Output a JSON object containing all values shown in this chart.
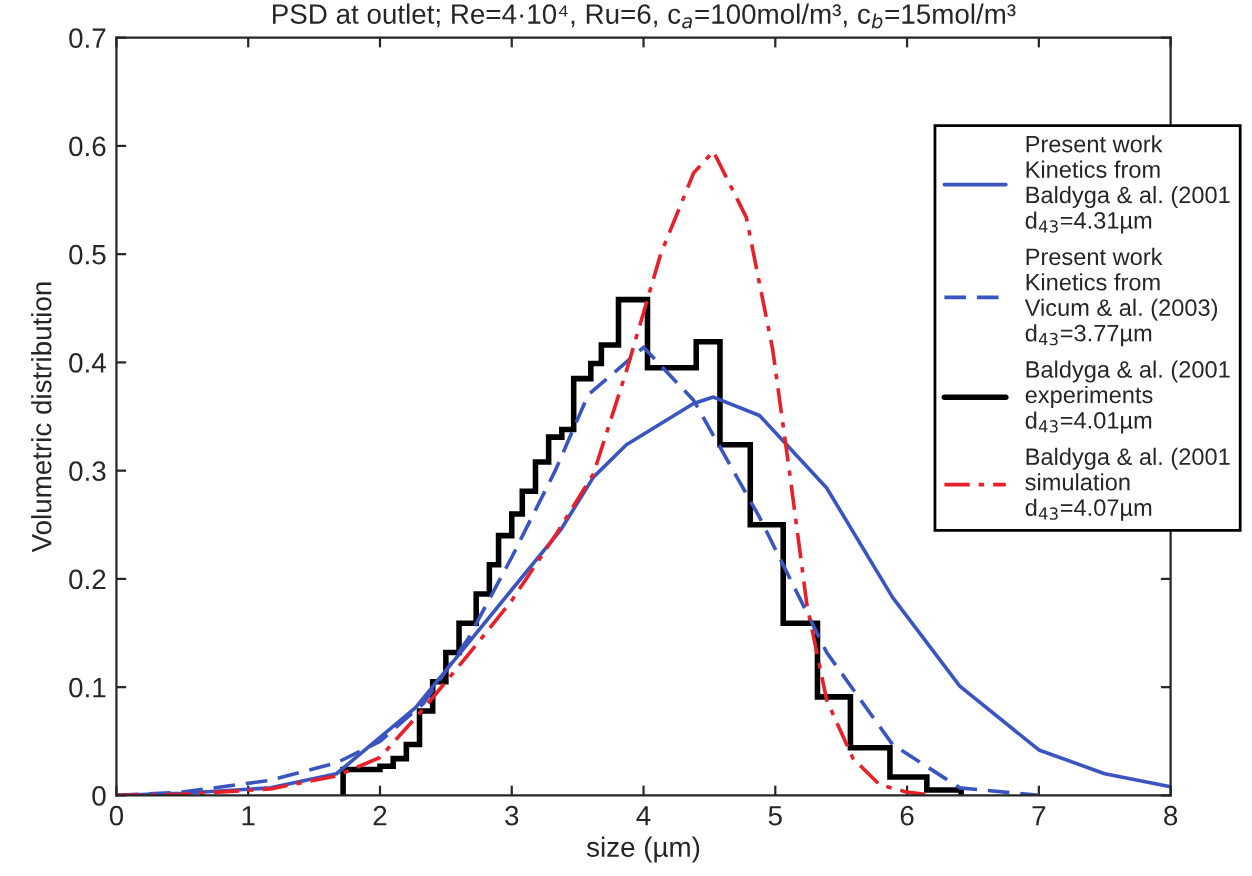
{
  "chart_data": {
    "type": "line",
    "title": "PSD at outlet; Re=4·10⁴, Ru=6, c$_{a}$=100mol/m³, c$_{b}$=15mol/m³",
    "xlabel": "size (µm)",
    "ylabel": "Volumetric distribution",
    "xlim": [
      0,
      8
    ],
    "ylim": [
      0,
      0.7
    ],
    "xticks": [
      0,
      1,
      2,
      3,
      4,
      5,
      6,
      7,
      8
    ],
    "yticks": [
      0,
      0.1,
      0.2,
      0.3,
      0.4,
      0.5,
      0.6,
      0.7
    ],
    "grid": false,
    "legend": "top right",
    "series": [
      {
        "name": "Present work\nKinetics from\nBaldyga & al. (2001\nd$_{43}$=4.31µm",
        "type": "line",
        "line_style": "solid",
        "color": "#3a55c0",
        "x": [
          0,
          0.5,
          1.17,
          1.67,
          2.27,
          3.0,
          3.37,
          3.62,
          3.87,
          4.38,
          4.53,
          4.88,
          5.39,
          5.89,
          6.4,
          7.0,
          7.5,
          8.0
        ],
        "values": [
          0,
          0.002,
          0.007,
          0.02,
          0.081,
          0.19,
          0.245,
          0.294,
          0.324,
          0.362,
          0.368,
          0.351,
          0.284,
          0.183,
          0.101,
          0.042,
          0.02,
          0.008
        ]
      },
      {
        "name": "Present work\nKinetics from\nVicum & al. (2003)\nd$_{43}$=3.77µm",
        "type": "line",
        "line_style": "dashed",
        "color": "#3a55c0",
        "x": [
          0,
          0.5,
          1.17,
          1.67,
          2.0,
          2.33,
          2.67,
          3.0,
          3.33,
          3.58,
          4.0,
          4.38,
          4.88,
          5.39,
          5.89,
          6.4,
          7.0
        ],
        "values": [
          0,
          0.003,
          0.014,
          0.03,
          0.05,
          0.085,
          0.145,
          0.22,
          0.3,
          0.37,
          0.414,
          0.365,
          0.257,
          0.132,
          0.047,
          0.007,
          0
        ]
      },
      {
        "name": "Baldyga & al. (2001\nexperiments\nd$_{43}$=4.01µm",
        "type": "histogram",
        "color": "#000000",
        "bins": [
          1.72,
          2.0,
          2.1,
          2.2,
          2.3,
          2.4,
          2.5,
          2.6,
          2.73,
          2.83,
          2.9,
          3.0,
          3.08,
          3.18,
          3.28,
          3.38,
          3.47,
          3.6,
          3.68,
          3.81,
          4.03,
          4.4,
          4.58,
          4.81,
          5.06,
          5.32,
          5.57,
          5.87,
          6.15,
          6.41
        ],
        "values": [
          0.024,
          0.027,
          0.034,
          0.047,
          0.078,
          0.105,
          0.132,
          0.159,
          0.186,
          0.213,
          0.24,
          0.26,
          0.281,
          0.308,
          0.331,
          0.338,
          0.385,
          0.399,
          0.416,
          0.458,
          0.395,
          0.419,
          0.324,
          0.25,
          0.159,
          0.091,
          0.044,
          0.017,
          0.005
        ]
      },
      {
        "name": "Baldyga & al. (2001\nsimulation\nd$_{43}$=4.07µm",
        "type": "line",
        "line_style": "dashdot",
        "color": "#e8202a",
        "x": [
          0,
          0.5,
          1.17,
          1.67,
          2.0,
          2.33,
          2.67,
          3.0,
          3.33,
          3.62,
          3.87,
          4.13,
          4.38,
          4.53,
          4.78,
          4.98,
          5.11,
          5.24,
          5.39,
          5.59,
          5.79,
          6.0,
          6.2
        ],
        "values": [
          0,
          0.001,
          0.006,
          0.018,
          0.035,
          0.08,
          0.13,
          0.18,
          0.24,
          0.297,
          0.392,
          0.5,
          0.575,
          0.595,
          0.534,
          0.412,
          0.297,
          0.176,
          0.088,
          0.034,
          0.01,
          0.003,
          0
        ]
      }
    ]
  }
}
